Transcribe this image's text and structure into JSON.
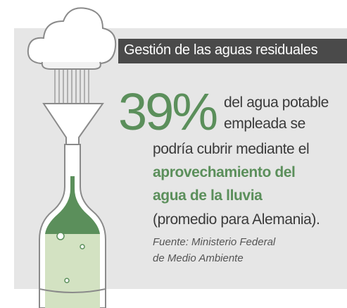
{
  "header": {
    "title": "Gestión de las aguas residuales"
  },
  "statistic": {
    "value": "39%",
    "lines": [
      "del agua potable",
      "empleada se"
    ]
  },
  "body": {
    "lines": [
      "podría cubrir mediante el"
    ],
    "highlight": [
      "aprovechamiento del",
      "agua de la lluvia"
    ],
    "note": "(promedio para Alemania)."
  },
  "source": [
    "Fuente: Ministerio Federal",
    "de Medio Ambiente"
  ]
}
